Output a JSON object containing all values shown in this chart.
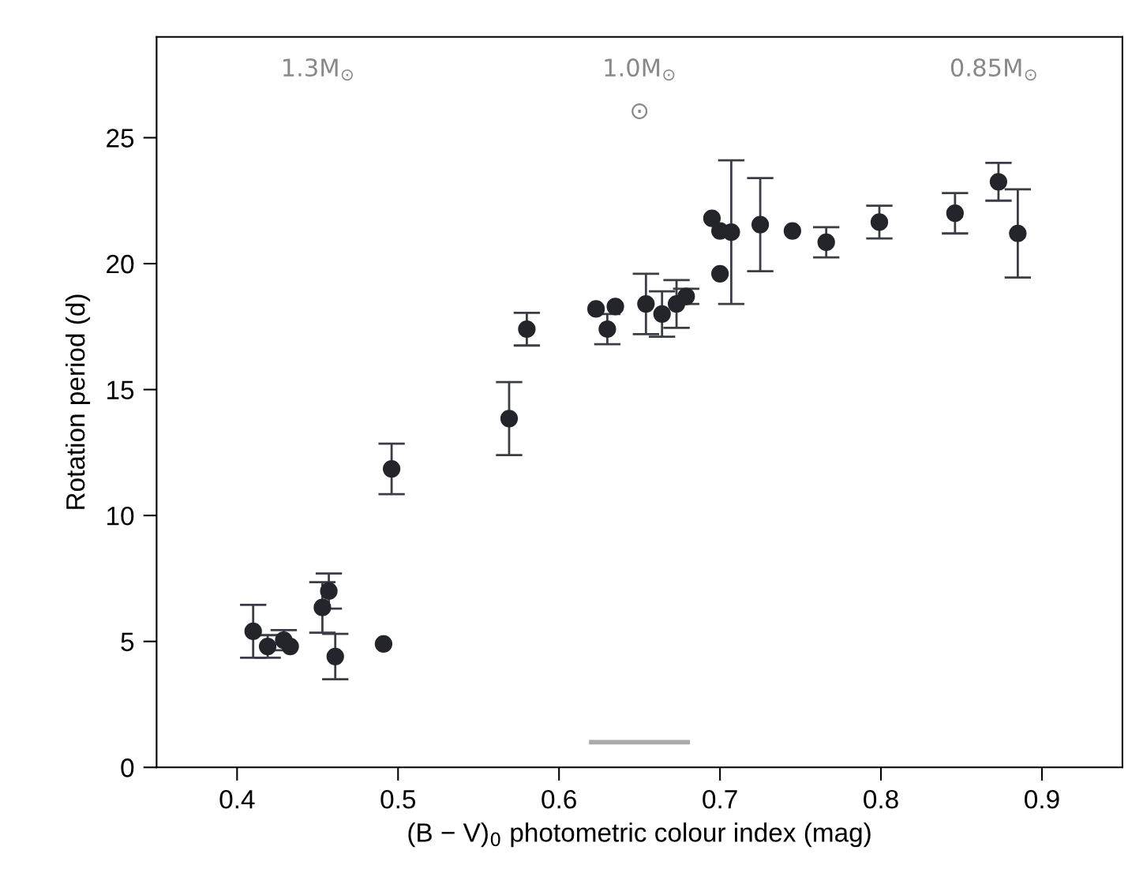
{
  "chart_data": {
    "type": "scatter",
    "xlabel": "(B − V)$_{0}$ photometric colour index (mag)",
    "ylabel": "Rotation period (d)",
    "xlim": [
      0.35,
      0.95
    ],
    "ylim": [
      0,
      29
    ],
    "xticks": [
      0.4,
      0.5,
      0.6,
      0.7,
      0.8,
      0.9
    ],
    "yticks": [
      0,
      5,
      10,
      15,
      20,
      25
    ],
    "grid": false,
    "legend": false,
    "series": [
      {
        "color": "#23252b",
        "marker": "circle",
        "x": [
          0.41,
          0.419,
          0.429,
          0.433,
          0.453,
          0.457,
          0.461,
          0.491,
          0.496,
          0.569,
          0.58,
          0.623,
          0.635,
          0.63,
          0.654,
          0.664,
          0.673,
          0.679,
          0.695,
          0.7,
          0.707,
          0.7,
          0.725,
          0.745,
          0.766,
          0.799,
          0.846,
          0.873,
          0.885
        ],
        "values": [
          5.4,
          4.8,
          5.05,
          4.8,
          6.35,
          7.0,
          4.4,
          4.9,
          11.85,
          13.85,
          17.4,
          18.2,
          18.3,
          17.4,
          18.4,
          18.0,
          18.4,
          18.7,
          21.8,
          21.3,
          21.25,
          19.6,
          21.55,
          21.3,
          20.85,
          21.65,
          22.0,
          23.25,
          21.2
        ],
        "errors": [
          1.05,
          0.45,
          0.4,
          null,
          1.0,
          0.7,
          0.9,
          null,
          1.0,
          1.45,
          0.65,
          null,
          null,
          0.6,
          1.2,
          0.9,
          0.95,
          0.3,
          null,
          null,
          2.85,
          null,
          1.85,
          null,
          0.6,
          0.65,
          0.8,
          0.75,
          1.75
        ]
      },
      {
        "type": "line",
        "color": "#aaaaaa",
        "x": [
          0.62,
          0.68
        ],
        "values": [
          1.0,
          1.0
        ]
      }
    ],
    "annotations": [
      "1.3M$_{⊙}$",
      "1.0M$_{⊙}$",
      "0.85M$_{⊙}$",
      "⊙"
    ]
  }
}
